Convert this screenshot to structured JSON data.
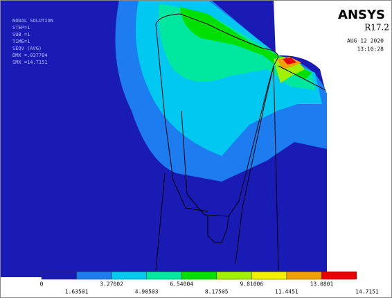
{
  "info": [
    "NODAL SOLUTION",
    "STEP=1",
    "SUB =1",
    "TIME=1",
    "SEQV     (AVG)",
    "DMX =.037784",
    "SMX =14.7151"
  ],
  "logo": {
    "product": "ANSYS",
    "release": "R17.2",
    "date": "AUG 12 2020",
    "time": "13:10:28"
  },
  "legend": {
    "colors": [
      "#1a1ab4",
      "#1c7cf0",
      "#00c8f0",
      "#00e8a0",
      "#00e000",
      "#a0f000",
      "#f0f000",
      "#f0a000",
      "#e80000"
    ],
    "labels": [
      "0",
      "1.63501",
      "3.27002",
      "4.90503",
      "6.54004",
      "8.17505",
      "9.81006",
      "11.4451",
      "13.0801",
      "14.7151"
    ]
  }
}
